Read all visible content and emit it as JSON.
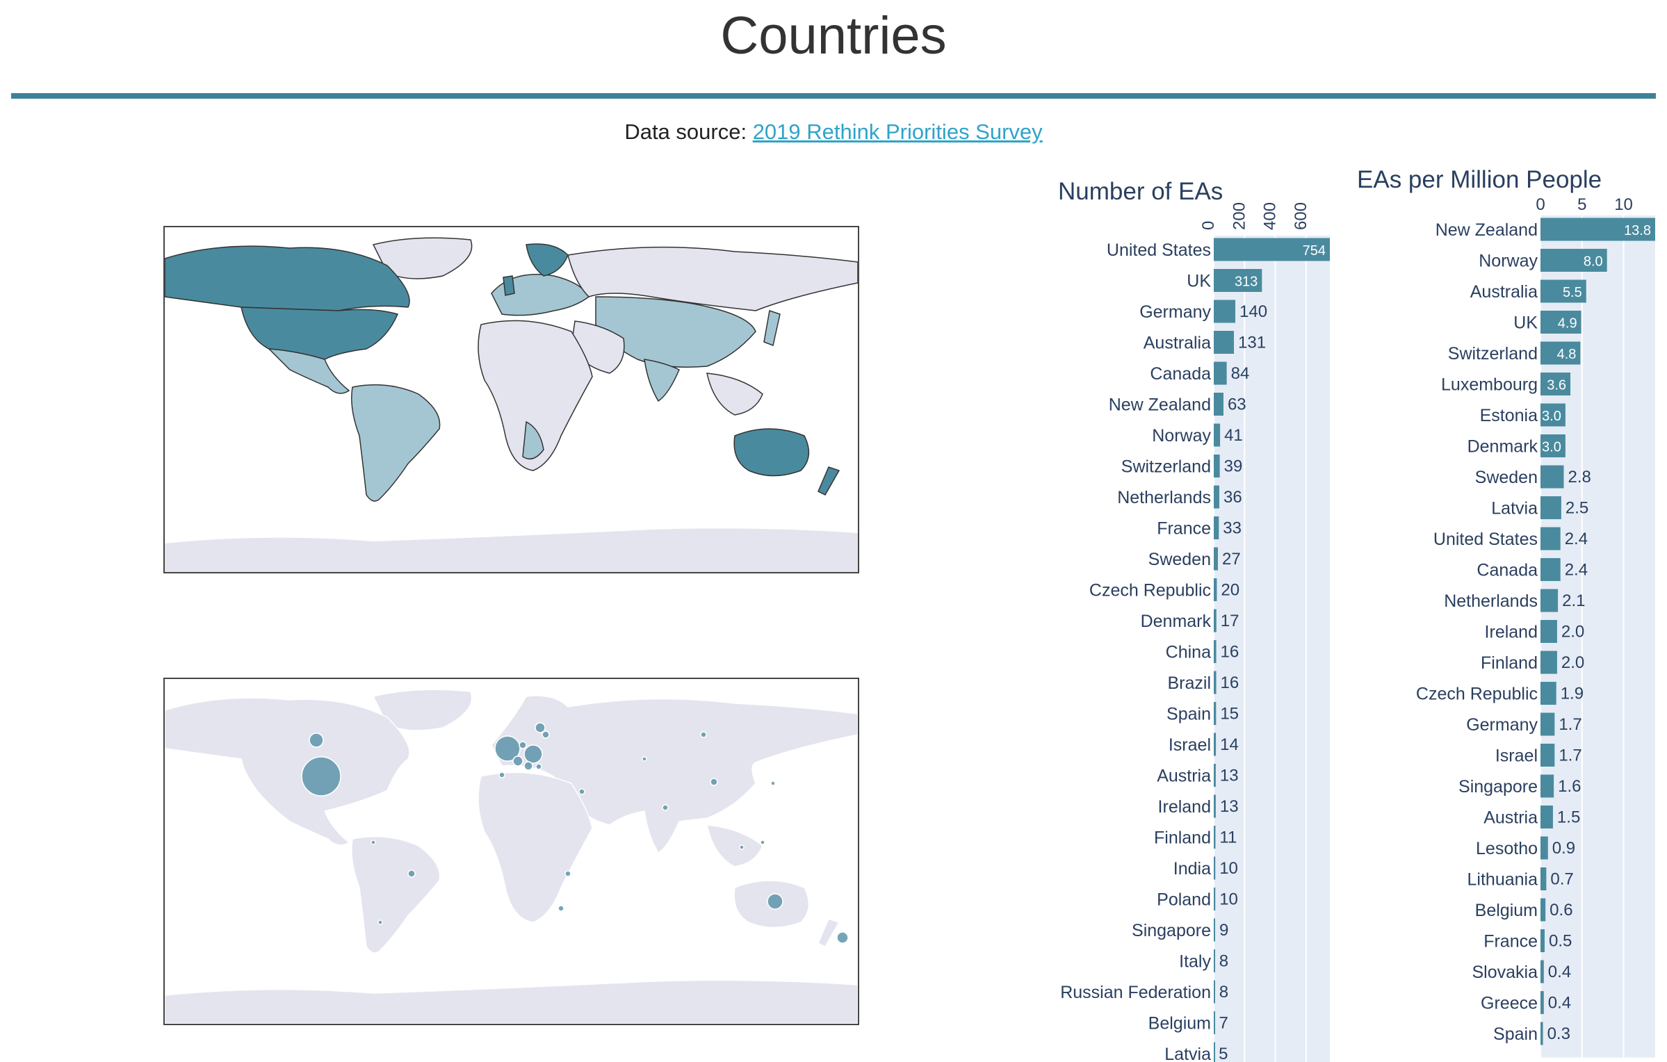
{
  "page": {
    "title": "Countries",
    "source_prefix": "Data source: ",
    "source_link": "2019 Rethink Priorities Survey"
  },
  "colors": {
    "accent": "#3d8299",
    "bar": "#4a8a9e",
    "plot_bg": "#e5ecf6",
    "land": "#e3e4ee",
    "choro_light": "#a4c6d2",
    "choro_dark": "#4a8a9e",
    "bubble": "#5e95aa"
  },
  "chart_data": [
    {
      "type": "bar",
      "orientation": "horizontal",
      "title": "Number of EAs",
      "xlim": [
        0,
        754
      ],
      "xticks": [
        0,
        200,
        400,
        600
      ],
      "categories": [
        "United States",
        "UK",
        "Germany",
        "Australia",
        "Canada",
        "New Zealand",
        "Norway",
        "Switzerland",
        "Netherlands",
        "France",
        "Sweden",
        "Czech Republic",
        "Denmark",
        "China",
        "Brazil",
        "Spain",
        "Israel",
        "Austria",
        "Ireland",
        "Finland",
        "India",
        "Poland",
        "Singapore",
        "Italy",
        "Russian Federation",
        "Belgium",
        "Latvia"
      ],
      "values": [
        754,
        313,
        140,
        131,
        84,
        63,
        41,
        39,
        36,
        33,
        27,
        20,
        17,
        16,
        16,
        15,
        14,
        13,
        13,
        11,
        10,
        10,
        9,
        8,
        8,
        7,
        5
      ],
      "labels": [
        "754",
        "313",
        "140",
        "131",
        "84",
        "63",
        "41",
        "39",
        "36",
        "33",
        "27",
        "20",
        "17",
        "16",
        "16",
        "15",
        "14",
        "13",
        "13",
        "11",
        "10",
        "10",
        "9",
        "8",
        "8",
        "7",
        "5"
      ]
    },
    {
      "type": "bar",
      "orientation": "horizontal",
      "title": "EAs per Million People",
      "xlim": [
        0,
        13.8
      ],
      "xticks": [
        0,
        5,
        10
      ],
      "categories": [
        "New Zealand",
        "Norway",
        "Australia",
        "UK",
        "Switzerland",
        "Luxembourg",
        "Estonia",
        "Denmark",
        "Sweden",
        "Latvia",
        "United States",
        "Canada",
        "Netherlands",
        "Ireland",
        "Finland",
        "Czech Republic",
        "Germany",
        "Israel",
        "Singapore",
        "Austria",
        "Lesotho",
        "Lithuania",
        "Belgium",
        "France",
        "Slovakia",
        "Greece",
        "Spain"
      ],
      "values": [
        13.8,
        8.0,
        5.5,
        4.9,
        4.8,
        3.6,
        3.0,
        3.0,
        2.8,
        2.5,
        2.4,
        2.4,
        2.1,
        2.0,
        2.0,
        1.9,
        1.7,
        1.7,
        1.6,
        1.5,
        0.9,
        0.7,
        0.6,
        0.5,
        0.4,
        0.4,
        0.3
      ],
      "labels": [
        "13.8",
        "8.0",
        "5.5",
        "4.9",
        "4.8",
        "3.6",
        "3.0",
        "3.0",
        "2.8",
        "2.5",
        "2.4",
        "2.4",
        "2.1",
        "2.0",
        "2.0",
        "1.9",
        "1.7",
        "1.7",
        "1.6",
        "1.5",
        "0.9",
        "0.7",
        "0.6",
        "0.5",
        "0.4",
        "0.4",
        "0.3"
      ]
    }
  ]
}
